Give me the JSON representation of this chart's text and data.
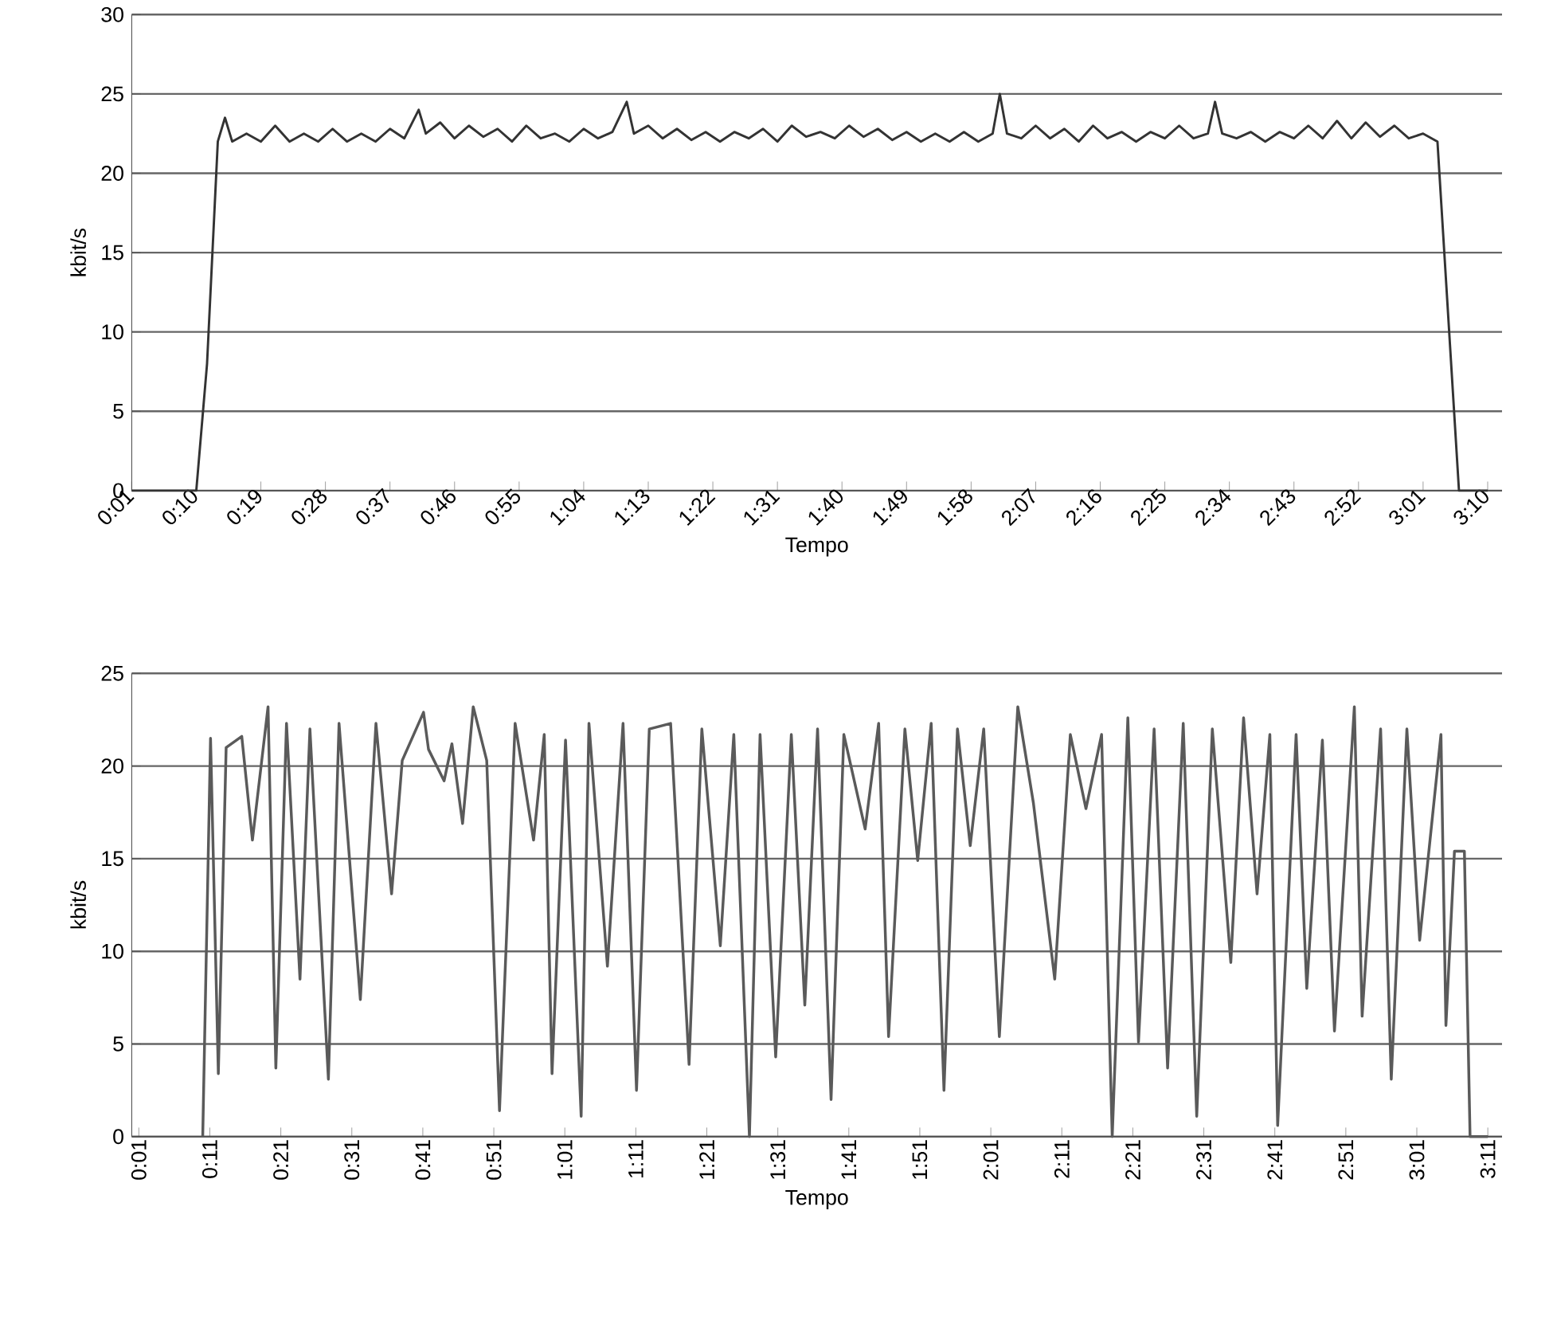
{
  "chart_data": [
    {
      "type": "line",
      "xlabel": "Tempo",
      "ylabel": "kbit/s",
      "xlim": [
        1,
        192
      ],
      "ylim": [
        0,
        30
      ],
      "yticks": [
        0,
        5,
        10,
        15,
        20,
        25,
        30
      ],
      "grid": "y",
      "line_style": "solid",
      "xticks": [
        {
          "value": 1,
          "label": "0:01"
        },
        {
          "value": 10,
          "label": "0:10"
        },
        {
          "value": 19,
          "label": "0:19"
        },
        {
          "value": 28,
          "label": "0:28"
        },
        {
          "value": 37,
          "label": "0:37"
        },
        {
          "value": 46,
          "label": "0:46"
        },
        {
          "value": 55,
          "label": "0:55"
        },
        {
          "value": 64,
          "label": "1:04"
        },
        {
          "value": 73,
          "label": "1:13"
        },
        {
          "value": 82,
          "label": "1:22"
        },
        {
          "value": 91,
          "label": "1:31"
        },
        {
          "value": 100,
          "label": "1:40"
        },
        {
          "value": 109,
          "label": "1:49"
        },
        {
          "value": 118,
          "label": "1:58"
        },
        {
          "value": 127,
          "label": "2:07"
        },
        {
          "value": 136,
          "label": "2:16"
        },
        {
          "value": 145,
          "label": "2:25"
        },
        {
          "value": 154,
          "label": "2:34"
        },
        {
          "value": 163,
          "label": "2:43"
        },
        {
          "value": 172,
          "label": "2:52"
        },
        {
          "value": 181,
          "label": "3:01"
        },
        {
          "value": 190,
          "label": "3:10"
        }
      ],
      "series": [
        {
          "color": "#333333",
          "x": [
            1,
            10,
            11.5,
            13,
            14,
            15,
            17,
            19,
            21,
            23,
            25,
            27,
            29,
            31,
            33,
            35,
            37,
            39,
            41,
            42,
            44,
            46,
            48,
            50,
            52,
            54,
            56,
            58,
            60,
            62,
            64,
            66,
            68,
            70,
            71,
            73,
            75,
            77,
            79,
            81,
            83,
            85,
            87,
            89,
            91,
            93,
            95,
            97,
            99,
            101,
            103,
            105,
            107,
            109,
            111,
            113,
            115,
            117,
            119,
            121,
            122,
            123,
            125,
            127,
            129,
            131,
            133,
            135,
            137,
            139,
            141,
            143,
            145,
            147,
            149,
            151,
            152,
            153,
            155,
            157,
            159,
            161,
            163,
            165,
            167,
            169,
            171,
            173,
            175,
            177,
            179,
            181,
            183,
            186,
            190
          ],
          "values": [
            0,
            0,
            8,
            22,
            23.5,
            22,
            22.5,
            22,
            23,
            22,
            22.5,
            22,
            22.8,
            22,
            22.5,
            22,
            22.8,
            22.2,
            24,
            22.5,
            23.2,
            22.2,
            23,
            22.3,
            22.8,
            22,
            23,
            22.2,
            22.5,
            22,
            22.8,
            22.2,
            22.6,
            24.5,
            22.5,
            23,
            22.2,
            22.8,
            22.1,
            22.6,
            22,
            22.6,
            22.2,
            22.8,
            22,
            23,
            22.3,
            22.6,
            22.2,
            23,
            22.3,
            22.8,
            22.1,
            22.6,
            22,
            22.5,
            22,
            22.6,
            22,
            22.5,
            25,
            22.5,
            22.2,
            23,
            22.2,
            22.8,
            22,
            23,
            22.2,
            22.6,
            22,
            22.6,
            22.2,
            23,
            22.2,
            22.5,
            24.5,
            22.5,
            22.2,
            22.6,
            22,
            22.6,
            22.2,
            23,
            22.2,
            23.3,
            22.2,
            23.2,
            22.3,
            23,
            22.2,
            22.5,
            22,
            0,
            0
          ]
        }
      ]
    },
    {
      "type": "line",
      "xlabel": "Tempo",
      "ylabel": "kbit/s",
      "xlim": [
        0,
        193
      ],
      "ylim": [
        0,
        25
      ],
      "yticks": [
        0,
        5,
        10,
        15,
        20,
        25
      ],
      "grid": "y",
      "line_style": "solid",
      "xticks": [
        {
          "value": 1,
          "label": "0:01"
        },
        {
          "value": 11,
          "label": "0:11"
        },
        {
          "value": 21,
          "label": "0:21"
        },
        {
          "value": 31,
          "label": "0:31"
        },
        {
          "value": 41,
          "label": "0:41"
        },
        {
          "value": 51,
          "label": "0:51"
        },
        {
          "value": 61,
          "label": "1:01"
        },
        {
          "value": 71,
          "label": "1:11"
        },
        {
          "value": 81,
          "label": "1:21"
        },
        {
          "value": 91,
          "label": "1:31"
        },
        {
          "value": 101,
          "label": "1:41"
        },
        {
          "value": 111,
          "label": "1:51"
        },
        {
          "value": 121,
          "label": "2:01"
        },
        {
          "value": 131,
          "label": "2:11"
        },
        {
          "value": 141,
          "label": "2:21"
        },
        {
          "value": 151,
          "label": "2:31"
        },
        {
          "value": 161,
          "label": "2:41"
        },
        {
          "value": 171,
          "label": "2:51"
        },
        {
          "value": 181,
          "label": "3:01"
        },
        {
          "value": 191,
          "label": "3:11"
        }
      ],
      "series": [
        {
          "color": "#5a5a5a",
          "x": [
            10.0,
            11.1,
            12.2,
            13.3,
            15.5,
            17.0,
            19.2,
            20.3,
            21.8,
            23.7,
            25.1,
            27.7,
            29.2,
            32.2,
            34.4,
            36.6,
            38.1,
            41.1,
            41.8,
            44.0,
            45.1,
            46.6,
            48.1,
            50.0,
            51.8,
            54.0,
            56.6,
            58.1,
            59.2,
            61.1,
            63.3,
            64.4,
            67.0,
            69.2,
            71.1,
            72.9,
            75.9,
            78.5,
            80.3,
            82.9,
            84.8,
            87.0,
            88.5,
            90.7,
            92.9,
            94.8,
            96.6,
            98.5,
            100.3,
            103.3,
            105.2,
            106.6,
            108.9,
            110.7,
            112.6,
            114.4,
            116.3,
            118.1,
            120.0,
            122.2,
            124.8,
            127.0,
            130.0,
            132.2,
            134.4,
            136.6,
            138.1,
            140.3,
            141.8,
            144.0,
            145.9,
            148.1,
            150.0,
            152.2,
            154.8,
            156.6,
            158.5,
            160.3,
            161.4,
            164.0,
            165.5,
            167.7,
            169.4,
            172.2,
            173.3,
            175.9,
            177.4,
            179.6,
            181.4,
            184.4,
            185.1,
            186.3,
            187.7,
            188.5,
            191
          ],
          "values": [
            0,
            21.5,
            3.4,
            21,
            21.6,
            16,
            23.2,
            3.7,
            22.3,
            8.5,
            22,
            3.1,
            22.3,
            7.4,
            22.3,
            13.1,
            20.3,
            22.9,
            20.9,
            19.2,
            21.2,
            16.9,
            23.2,
            20.3,
            1.4,
            22.3,
            16,
            21.7,
            3.4,
            21.4,
            1.1,
            22.3,
            9.2,
            22.3,
            2.5,
            22,
            22.3,
            3.9,
            22,
            10.3,
            21.7,
            0,
            21.7,
            4.3,
            21.7,
            7.1,
            22,
            2,
            21.7,
            16.6,
            22.3,
            5.4,
            22,
            14.9,
            22.3,
            2.5,
            22,
            15.7,
            22,
            5.4,
            23.2,
            18,
            8.5,
            21.7,
            17.7,
            21.7,
            0,
            22.6,
            5.1,
            22,
            3.7,
            22.3,
            1.1,
            22,
            9.4,
            22.6,
            13.1,
            21.7,
            0.6,
            21.7,
            8,
            21.4,
            5.7,
            23.2,
            6.5,
            22,
            3.1,
            22,
            10.6,
            21.7,
            6,
            15.4,
            15.4,
            0,
            0
          ]
        }
      ]
    }
  ]
}
